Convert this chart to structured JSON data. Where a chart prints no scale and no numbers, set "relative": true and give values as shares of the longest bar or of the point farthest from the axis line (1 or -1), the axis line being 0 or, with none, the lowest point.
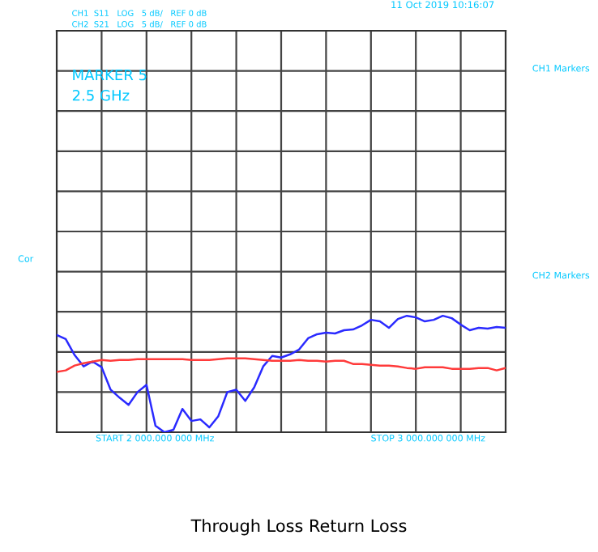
{
  "chart_data": {
    "type": "line",
    "title": "Through Loss Return Loss",
    "relative": true,
    "categories": [
      null,
      null,
      null,
      null,
      null,
      null,
      null,
      null,
      null,
      null,
      null,
      null,
      null,
      null,
      null,
      null,
      null,
      null,
      null,
      null,
      null,
      null,
      null,
      null,
      null,
      null,
      null,
      null,
      null,
      null,
      null,
      null,
      null,
      null,
      null,
      null,
      null,
      null,
      null,
      null,
      null,
      null,
      null,
      null,
      null,
      null,
      null,
      null,
      null,
      null,
      null
    ],
    "series": [
      {
        "color": "#2a2aff",
        "values": [
          0.21,
          0.16,
          -0.04,
          -0.18,
          -0.12,
          -0.19,
          -0.47,
          -0.57,
          -0.66,
          -0.5,
          -0.41,
          -0.92,
          -1.0,
          -0.97,
          -0.71,
          -0.86,
          -0.84,
          -0.94,
          -0.8,
          -0.5,
          -0.47,
          -0.61,
          -0.44,
          -0.18,
          -0.05,
          -0.07,
          -0.03,
          0.03,
          0.17,
          0.22,
          0.24,
          0.23,
          0.27,
          0.28,
          0.33,
          0.4,
          0.38,
          0.3,
          0.41,
          0.45,
          0.43,
          0.38,
          0.4,
          0.45,
          0.42,
          0.34,
          0.27,
          0.3,
          0.29,
          0.31,
          0.3
        ]
      },
      {
        "color": "#ff3a3a",
        "values": [
          -0.25,
          -0.23,
          -0.17,
          -0.14,
          -0.12,
          -0.1,
          -0.11,
          -0.1,
          -0.1,
          -0.09,
          -0.09,
          -0.09,
          -0.09,
          -0.09,
          -0.09,
          -0.1,
          -0.1,
          -0.1,
          -0.09,
          -0.08,
          -0.08,
          -0.08,
          -0.09,
          -0.1,
          -0.11,
          -0.11,
          -0.11,
          -0.1,
          -0.11,
          -0.11,
          -0.12,
          -0.11,
          -0.11,
          -0.15,
          -0.15,
          -0.16,
          -0.17,
          -0.17,
          -0.18,
          -0.2,
          -0.21,
          -0.19,
          -0.19,
          -0.19,
          -0.21,
          -0.21,
          -0.21,
          -0.2,
          -0.2,
          -0.23,
          -0.2
        ]
      }
    ],
    "grid": true,
    "annotations": [
      "11 Oct 2019 10:16:07",
      "CH1  S11   LOG   5 dB/   REF 0 dB",
      "CH2  S21   LOG   5 dB/   REF 0 dB",
      "MARKER 5",
      "2.5 GHz",
      "START 2 000.000 000 MHz",
      "STOP 3 000.000 000 MHz",
      "CH1 Markers",
      "CH2 Markers",
      "Cor"
    ]
  }
}
